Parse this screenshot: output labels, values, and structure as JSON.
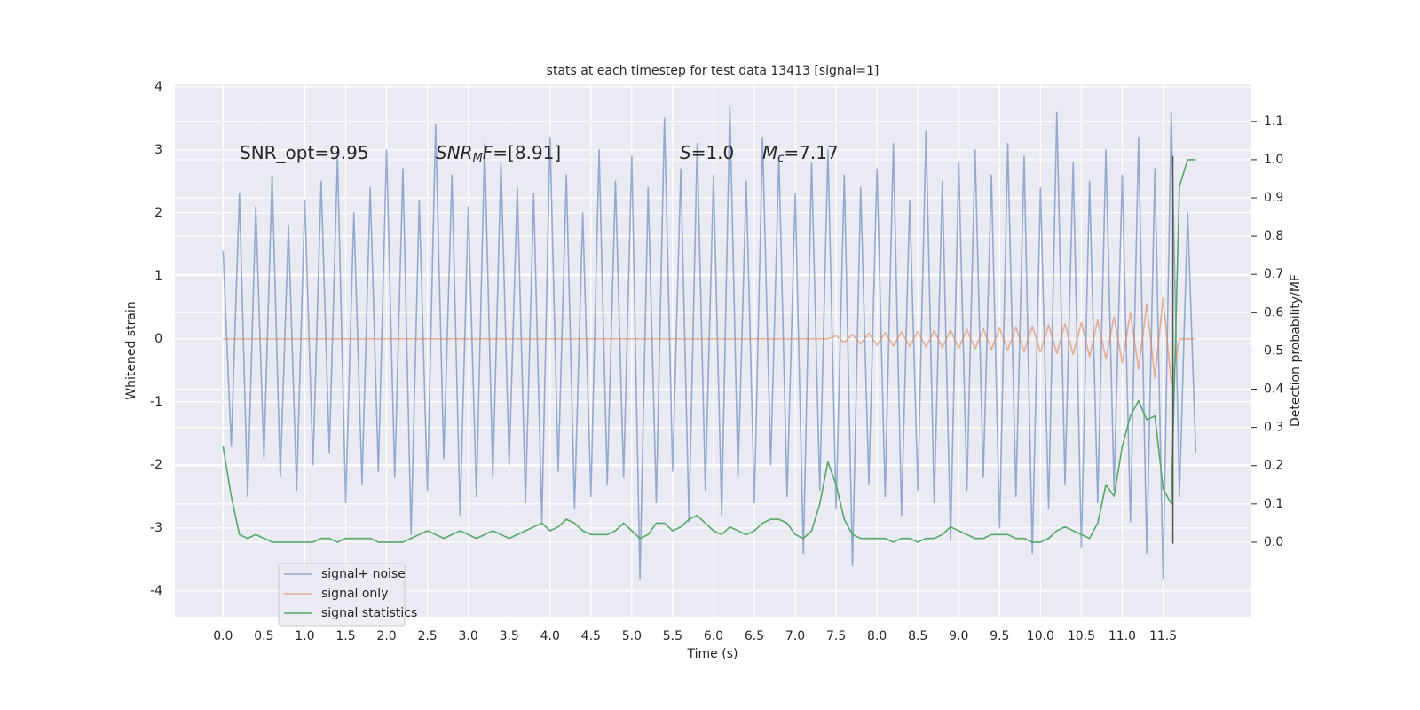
{
  "chart_data": {
    "type": "line",
    "title": "stats at each timestep for test data 13413 [signal=1]",
    "xlabel": "Time (s)",
    "ylabel": "Whitened strain",
    "y2label": "Detection probability/MF",
    "x": [
      0,
      0.1,
      0.2,
      0.3,
      0.4,
      0.5,
      0.6,
      0.7,
      0.8,
      0.9,
      1,
      1.1,
      1.2,
      1.3,
      1.4,
      1.5,
      1.6,
      1.7,
      1.8,
      1.9,
      2,
      2.1,
      2.2,
      2.3,
      2.4,
      2.5,
      2.6,
      2.7,
      2.8,
      2.9,
      3,
      3.1,
      3.2,
      3.3,
      3.4,
      3.5,
      3.6,
      3.7,
      3.8,
      3.9,
      4,
      4.1,
      4.2,
      4.3,
      4.4,
      4.5,
      4.6,
      4.7,
      4.8,
      4.9,
      5,
      5.1,
      5.2,
      5.3,
      5.4,
      5.5,
      5.6,
      5.7,
      5.8,
      5.9,
      6,
      6.1,
      6.2,
      6.3,
      6.4,
      6.5,
      6.6,
      6.7,
      6.8,
      6.9,
      7,
      7.1,
      7.2,
      7.3,
      7.4,
      7.5,
      7.6,
      7.7,
      7.8,
      7.9,
      8,
      8.1,
      8.2,
      8.3,
      8.4,
      8.5,
      8.6,
      8.7,
      8.8,
      8.9,
      9,
      9.1,
      9.2,
      9.3,
      9.4,
      9.5,
      9.6,
      9.7,
      9.8,
      9.9,
      10,
      10.1,
      10.2,
      10.3,
      10.4,
      10.5,
      10.6,
      10.7,
      10.8,
      10.9,
      11,
      11.1,
      11.2,
      11.3,
      11.4,
      11.5,
      11.6,
      11.7,
      11.8,
      11.9
    ],
    "series": [
      {
        "name": "signal+ noise",
        "color": "#4c72b0",
        "alpha": 0.55,
        "values": [
          1.4,
          -1.7,
          2.3,
          -2.5,
          2.1,
          -1.9,
          2.6,
          -2.2,
          1.8,
          -2.4,
          2.2,
          -2.0,
          2.5,
          -1.8,
          2.9,
          -2.6,
          2.0,
          -2.3,
          2.4,
          -2.1,
          3.0,
          -2.2,
          2.7,
          -3.1,
          2.2,
          -2.4,
          3.4,
          -1.9,
          2.6,
          -2.8,
          2.1,
          -2.5,
          3.1,
          -2.2,
          2.8,
          -2.0,
          2.4,
          -2.6,
          2.3,
          -2.9,
          3.2,
          -2.1,
          2.6,
          -2.7,
          2.0,
          -2.5,
          3.0,
          -2.3,
          2.5,
          -2.2,
          2.9,
          -3.8,
          2.4,
          -2.6,
          3.5,
          -2.1,
          2.7,
          -2.9,
          3.1,
          -2.4,
          2.6,
          -2.8,
          3.7,
          -2.2,
          2.5,
          -2.6,
          3.2,
          -2.0,
          2.9,
          -2.5,
          2.3,
          -3.4,
          2.8,
          -2.4,
          3.0,
          -2.7,
          2.6,
          -3.6,
          2.4,
          -2.3,
          2.7,
          -2.5,
          3.1,
          -2.8,
          2.2,
          -2.4,
          3.3,
          -2.6,
          2.5,
          -3.2,
          2.8,
          -2.4,
          3.0,
          -2.2,
          2.6,
          -3.0,
          3.1,
          -2.5,
          2.9,
          -3.4,
          2.4,
          -2.7,
          3.6,
          -2.3,
          2.8,
          -3.3,
          2.5,
          -2.6,
          3.0,
          -2.4,
          2.6,
          -2.9,
          3.2,
          -3.4,
          2.7,
          -3.8,
          3.6,
          -2.5,
          2.0,
          -1.8
        ]
      },
      {
        "name": "signal only",
        "color": "#dd8452",
        "alpha": 0.6,
        "values": [
          0,
          0,
          0,
          0,
          0,
          0,
          0,
          0,
          0,
          0,
          0,
          0,
          0,
          0,
          0,
          0,
          0,
          0,
          0,
          0,
          0,
          0,
          0,
          0,
          0,
          0,
          0,
          0,
          0,
          0,
          0,
          0,
          0,
          0,
          0,
          0,
          0,
          0,
          0,
          0,
          0,
          0,
          0,
          0,
          0,
          0,
          0,
          0,
          0,
          0,
          0,
          0,
          0,
          0,
          0,
          0,
          0,
          0,
          0,
          0,
          0,
          0,
          0,
          0,
          0,
          0,
          0,
          0,
          0,
          0,
          0,
          0,
          0,
          0,
          0,
          0.05,
          -0.06,
          0.07,
          -0.08,
          0.09,
          -0.1,
          0.1,
          -0.11,
          0.11,
          -0.12,
          0.12,
          -0.13,
          0.13,
          -0.14,
          0.14,
          -0.15,
          0.15,
          -0.16,
          0.16,
          -0.17,
          0.17,
          -0.18,
          0.19,
          -0.2,
          0.2,
          -0.21,
          0.22,
          -0.23,
          0.24,
          -0.25,
          0.26,
          -0.28,
          0.3,
          -0.32,
          0.35,
          -0.38,
          0.42,
          -0.48,
          0.55,
          -0.62,
          0.65,
          -0.7,
          0,
          0,
          0
        ]
      },
      {
        "name": "signal statistics",
        "color": "#55a868",
        "alpha": 1,
        "axis": "y2",
        "values": [
          0.25,
          0.12,
          0.02,
          0.01,
          0.02,
          0.01,
          0,
          0,
          0,
          0,
          0,
          0,
          0.01,
          0.01,
          0,
          0.01,
          0.01,
          0.01,
          0.01,
          0,
          0,
          0,
          0,
          0.01,
          0.02,
          0.03,
          0.02,
          0.01,
          0.02,
          0.03,
          0.02,
          0.01,
          0.02,
          0.03,
          0.02,
          0.01,
          0.02,
          0.03,
          0.04,
          0.05,
          0.03,
          0.04,
          0.06,
          0.05,
          0.03,
          0.02,
          0.02,
          0.02,
          0.03,
          0.05,
          0.03,
          0.01,
          0.02,
          0.05,
          0.05,
          0.03,
          0.04,
          0.06,
          0.07,
          0.05,
          0.03,
          0.02,
          0.04,
          0.03,
          0.02,
          0.03,
          0.05,
          0.06,
          0.06,
          0.05,
          0.02,
          0.01,
          0.03,
          0.1,
          0.21,
          0.15,
          0.06,
          0.02,
          0.01,
          0.01,
          0.01,
          0.01,
          0,
          0.01,
          0.01,
          0,
          0.01,
          0.01,
          0.02,
          0.04,
          0.03,
          0.02,
          0.01,
          0.01,
          0.02,
          0.02,
          0.02,
          0.01,
          0.01,
          0,
          0,
          0.01,
          0.03,
          0.04,
          0.03,
          0.02,
          0.01,
          0.05,
          0.15,
          0.12,
          0.25,
          0.33,
          0.37,
          0.32,
          0.33,
          0.14,
          0.1,
          0.93,
          1.0,
          1.0
        ]
      }
    ],
    "vline": {
      "x": 11.62,
      "y": [
        -3.25,
        2.9
      ],
      "color": "#555555"
    },
    "annotations": [
      {
        "parts": [
          {
            "text": "SNR_opt=9.95"
          }
        ]
      },
      {
        "parts": [
          {
            "text": "SNR",
            "style": "italic"
          },
          {
            "text": "M",
            "style": "sub"
          },
          {
            "text": "F",
            "style": "italic"
          },
          {
            "text": "=[8.91]"
          }
        ]
      },
      {
        "parts": [
          {
            "text": "S",
            "style": "italic"
          },
          {
            "text": "=1.0"
          }
        ]
      },
      {
        "parts": [
          {
            "text": "M",
            "style": "italic"
          },
          {
            "text": "c",
            "style": "sub"
          },
          {
            "text": "=7.17"
          }
        ]
      }
    ],
    "xlim": [
      -0.59,
      12.58
    ],
    "xticks": [
      {
        "value": 0,
        "label": "0.0"
      },
      {
        "value": 0.5,
        "label": "0.5"
      },
      {
        "value": 1,
        "label": "1.0"
      },
      {
        "value": 1.5,
        "label": "1.5"
      },
      {
        "value": 2,
        "label": "2.0"
      },
      {
        "value": 2.5,
        "label": "2.5"
      },
      {
        "value": 3,
        "label": "3.0"
      },
      {
        "value": 3.5,
        "label": "3.5"
      },
      {
        "value": 4,
        "label": "4.0"
      },
      {
        "value": 4.5,
        "label": "4.5"
      },
      {
        "value": 5,
        "label": "5.0"
      },
      {
        "value": 5.5,
        "label": "5.5"
      },
      {
        "value": 6,
        "label": "6.0"
      },
      {
        "value": 6.5,
        "label": "6.5"
      },
      {
        "value": 7,
        "label": "7.0"
      },
      {
        "value": 7.5,
        "label": "7.5"
      },
      {
        "value": 8,
        "label": "8.0"
      },
      {
        "value": 8.5,
        "label": "8.5"
      },
      {
        "value": 9,
        "label": "9.0"
      },
      {
        "value": 9.5,
        "label": "9.5"
      },
      {
        "value": 10,
        "label": "10.0"
      },
      {
        "value": 10.5,
        "label": "10.5"
      },
      {
        "value": 11,
        "label": "11.0"
      },
      {
        "value": 11.5,
        "label": "11.5"
      }
    ],
    "ylim": [
      -4.41,
      4.04
    ],
    "yticks": [
      -4,
      -3,
      -2,
      -1,
      0,
      1,
      2,
      3,
      4
    ],
    "y2lim": [
      -0.195,
      1.197
    ],
    "y2ticks": [
      {
        "value": 0,
        "label": "0.0"
      },
      {
        "value": 0.1,
        "label": "0.1"
      },
      {
        "value": 0.2,
        "label": "0.2"
      },
      {
        "value": 0.3,
        "label": "0.3"
      },
      {
        "value": 0.4,
        "label": "0.4"
      },
      {
        "value": 0.5,
        "label": "0.5"
      },
      {
        "value": 0.6,
        "label": "0.6"
      },
      {
        "value": 0.7,
        "label": "0.7"
      },
      {
        "value": 0.8,
        "label": "0.8"
      },
      {
        "value": 0.9,
        "label": "0.9"
      },
      {
        "value": 1,
        "label": "1.0"
      },
      {
        "value": 1.1,
        "label": "1.1"
      }
    ],
    "grid": true,
    "legend": "lower left"
  }
}
